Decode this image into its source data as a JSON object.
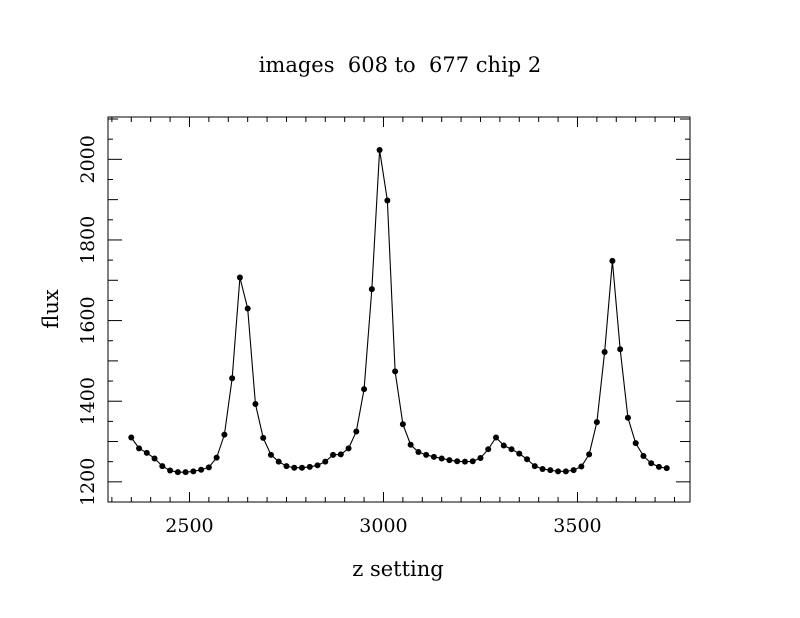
{
  "chart_data": {
    "type": "line",
    "title": "images  608 to  677 chip 2",
    "xlabel": "z setting",
    "ylabel": "flux",
    "xlim": [
      2290,
      3790
    ],
    "ylim": [
      1150,
      2105
    ],
    "x_ticks": [
      2500,
      3000,
      3500
    ],
    "y_ticks": [
      1200,
      1400,
      1600,
      1800,
      2000
    ],
    "x_tick_labels": [
      "2500",
      "3000",
      "3500"
    ],
    "y_tick_labels": [
      "1200",
      "1400",
      "1600",
      "1800",
      "2000"
    ],
    "grid": false,
    "legend": "none",
    "line_color": "#000000",
    "marker": "filled-circle",
    "series": [
      {
        "x": [
          2350,
          2370,
          2390,
          2410,
          2430,
          2450,
          2470,
          2490,
          2510,
          2530,
          2550,
          2570,
          2590,
          2610,
          2630,
          2650,
          2670,
          2690,
          2710,
          2730,
          2750,
          2770,
          2790,
          2810,
          2830,
          2850,
          2870,
          2890,
          2910,
          2930,
          2950,
          2970,
          2990,
          3010,
          3030,
          3050,
          3070,
          3090,
          3110,
          3130,
          3150,
          3170,
          3190,
          3210,
          3230,
          3250,
          3270,
          3290,
          3310,
          3330,
          3350,
          3370,
          3390,
          3410,
          3430,
          3450,
          3470,
          3490,
          3510,
          3530,
          3550,
          3570,
          3590,
          3610,
          3630,
          3650,
          3670,
          3690,
          3710,
          3730
        ],
        "values": [
          1310,
          1283,
          1272,
          1258,
          1239,
          1228,
          1224,
          1224,
          1226,
          1230,
          1236,
          1260,
          1317,
          1457,
          1707,
          1630,
          1393,
          1309,
          1267,
          1250,
          1239,
          1235,
          1235,
          1237,
          1241,
          1250,
          1267,
          1268,
          1283,
          1325,
          1430,
          1678,
          2023,
          1898,
          1474,
          1343,
          1292,
          1274,
          1267,
          1262,
          1258,
          1254,
          1251,
          1250,
          1251,
          1259,
          1281,
          1310,
          1290,
          1281,
          1270,
          1256,
          1239,
          1232,
          1229,
          1226,
          1226,
          1229,
          1238,
          1268,
          1348,
          1522,
          1748,
          1529,
          1359,
          1296,
          1264,
          1246,
          1237,
          1234
        ]
      }
    ]
  }
}
